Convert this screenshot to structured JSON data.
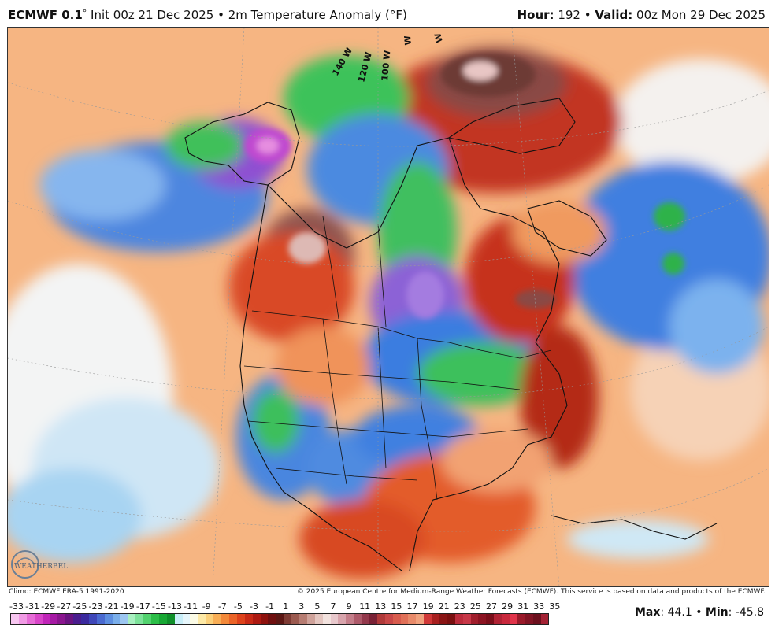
{
  "header": {
    "model": "ECMWF 0.1",
    "degree": "°",
    "init": " Init 00z 21 Dec 2025 • 2m Temperature Anomaly (°F)",
    "hour_label": "Hour:",
    "hour_value": " 192 • ",
    "valid_label": "Valid:",
    "valid_value": " 00z Mon 29 Dec 2025"
  },
  "map": {
    "longitude_labels": [
      "140 W",
      "120 W",
      "100 W",
      "W",
      "W"
    ],
    "colors": {
      "ocean_warm": "#f5b27a",
      "cold_blue": "#3a7be0",
      "cold_green": "#3fc25c",
      "cold_purple": "#9a5ad6",
      "warm_red": "#c8331e",
      "extreme_warm": "#7a3a36",
      "borders": "#111111"
    }
  },
  "footer": {
    "climo": "Climo: ECMWF ERA-5 1991-2020",
    "copyright": "© 2025 European Centre for Medium-Range Weather Forecasts (ECMWF). This service is based on data and products of the ECMWF."
  },
  "logo": {
    "text": "WEATHERBELL"
  },
  "colorbar": {
    "labels": [
      "-33",
      "-31",
      "-29",
      "-27",
      "-25",
      "-23",
      "-21",
      "-19",
      "-17",
      "-15",
      "-13",
      "-11",
      "-9",
      "-7",
      "-5",
      "-3",
      "-1",
      "1",
      "3",
      "5",
      "7",
      "9",
      "11",
      "13",
      "15",
      "17",
      "19",
      "21",
      "23",
      "25",
      "27",
      "29",
      "31",
      "33",
      "35"
    ],
    "colors": [
      "#f7c6f0",
      "#f09ae4",
      "#e66cd6",
      "#d845c8",
      "#c025b8",
      "#a61aa4",
      "#8a168e",
      "#6a1480",
      "#4a1d8e",
      "#3b2a9e",
      "#3f47b8",
      "#4a6ad0",
      "#5d8ee0",
      "#7aaeea",
      "#9cc6f0",
      "#a8f0c0",
      "#7de29a",
      "#52d26e",
      "#2cbe48",
      "#18a834",
      "#0f8f2a",
      "#c8eef8",
      "#e6f6fb",
      "#fbfbe6",
      "#fde9a6",
      "#fbd07a",
      "#f8ae56",
      "#f3893a",
      "#eb6428",
      "#de431c",
      "#c82a16",
      "#ad1a12",
      "#8e120e",
      "#6f1010",
      "#5c1714",
      "#7e3b34",
      "#9b5a50",
      "#b67c72",
      "#cfa29a",
      "#e4c6c0",
      "#f2e2de",
      "#e8c8cc",
      "#d8a4ac",
      "#c47e8a",
      "#ad5a6a",
      "#93394c",
      "#7a2236",
      "#b03a3a",
      "#c84848",
      "#d85c4e",
      "#e07058",
      "#e88a6a",
      "#f0a27e",
      "#d03838",
      "#a82020",
      "#8a1515",
      "#7a1010",
      "#bb2c3c",
      "#c73848",
      "#a01e2c",
      "#8c1422",
      "#7a0e1a",
      "#b02234",
      "#c8283c",
      "#e0344a",
      "#9a1a2a",
      "#811424",
      "#6c101e",
      "#a32234"
    ]
  },
  "stats": {
    "max_label": "Max",
    "max_value": ": 44.1 • ",
    "min_label": "Min",
    "min_value": ": -45.8"
  }
}
